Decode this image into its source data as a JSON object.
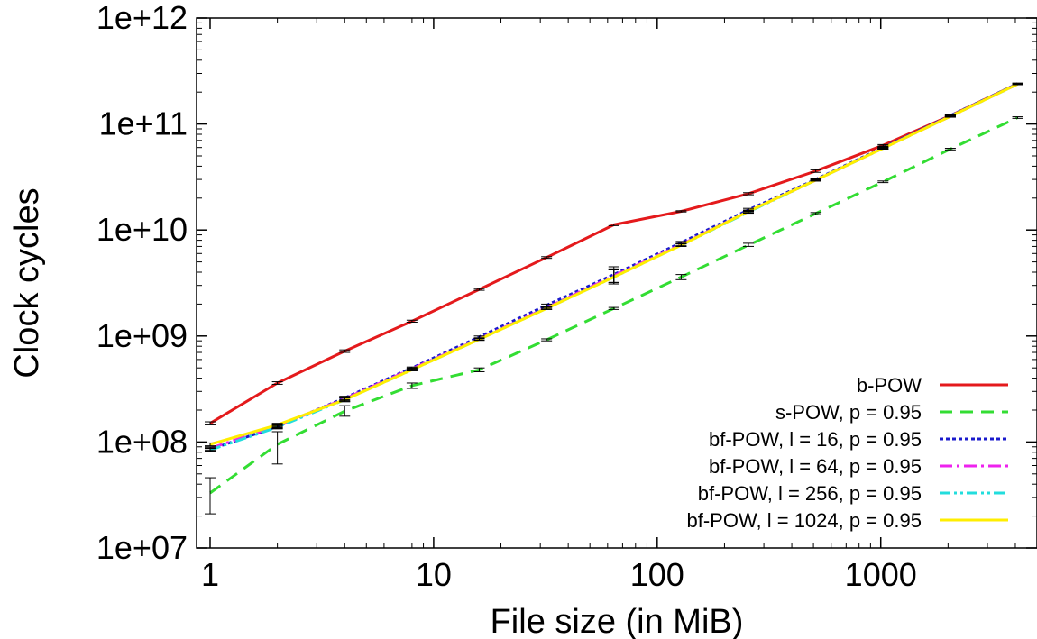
{
  "chart_data": {
    "type": "line",
    "title": "",
    "xlabel": "File size (in MiB)",
    "ylabel": "Clock cycles",
    "xscale": "log",
    "yscale": "log",
    "xlim": [
      0.87,
      5000
    ],
    "ylim": [
      10000000.0,
      1000000000000.0
    ],
    "xticks": [
      {
        "value": 1,
        "label": "1"
      },
      {
        "value": 10,
        "label": "10"
      },
      {
        "value": 100,
        "label": "100"
      },
      {
        "value": 1000,
        "label": "1000"
      }
    ],
    "yticks": [
      {
        "value": 10000000.0,
        "label": "1e+07"
      },
      {
        "value": 100000000.0,
        "label": "1e+08"
      },
      {
        "value": 1000000000.0,
        "label": "1e+09"
      },
      {
        "value": 10000000000.0,
        "label": "1e+10"
      },
      {
        "value": 100000000000.0,
        "label": "1e+11"
      },
      {
        "value": 1000000000000.0,
        "label": "1e+12"
      }
    ],
    "legend_position": "bottom-right",
    "grid": false,
    "series": [
      {
        "name": "b-POW",
        "color": "#e41a1c",
        "dash": "solid",
        "points": [
          {
            "x": 1,
            "y": 150000000.0,
            "err": [
              145000000.0,
              155000000.0
            ]
          },
          {
            "x": 2,
            "y": 360000000.0,
            "err": [
              350000000.0,
              370000000.0
            ]
          },
          {
            "x": 4,
            "y": 720000000.0,
            "err": [
              700000000.0,
              740000000.0
            ]
          },
          {
            "x": 8,
            "y": 1380000000.0,
            "err": [
              1350000000.0,
              1410000000.0
            ]
          },
          {
            "x": 16,
            "y": 2750000000.0,
            "err": [
              2700000000.0,
              2800000000.0
            ]
          },
          {
            "x": 32,
            "y": 5500000000.0,
            "err": [
              5400000000.0,
              5600000000.0
            ]
          },
          {
            "x": 64,
            "y": 11200000000.0,
            "err": [
              11000000000.0,
              11400000000.0
            ]
          },
          {
            "x": 128,
            "y": 15000000000.0,
            "err": [
              14800000000.0,
              15200000000.0
            ]
          },
          {
            "x": 256,
            "y": 22000000000.0,
            "err": [
              21500000000.0,
              22500000000.0
            ]
          },
          {
            "x": 512,
            "y": 36000000000.0,
            "err": [
              35000000000.0,
              37000000000.0
            ]
          },
          {
            "x": 1024,
            "y": 63000000000.0,
            "err": [
              62000000000.0,
              64000000000.0
            ]
          },
          {
            "x": 2048,
            "y": 120000000000.0,
            "err": [
              118000000000.0,
              122000000000.0
            ]
          },
          {
            "x": 4096,
            "y": 240000000000.0,
            "err": [
              237000000000.0,
              243000000000.0
            ]
          }
        ]
      },
      {
        "name": "s-POW, p = 0.95",
        "color": "#33dd33",
        "dash": "dashed",
        "points": [
          {
            "x": 1,
            "y": 33000000.0,
            "err": [
              21000000.0,
              46000000.0
            ]
          },
          {
            "x": 2,
            "y": 95000000.0,
            "err": [
              62000000.0,
              125000000.0
            ]
          },
          {
            "x": 4,
            "y": 195000000.0,
            "err": [
              175000000.0,
              220000000.0
            ]
          },
          {
            "x": 8,
            "y": 340000000.0,
            "err": [
              320000000.0,
              360000000.0
            ]
          },
          {
            "x": 16,
            "y": 480000000.0,
            "err": [
              460000000.0,
              500000000.0
            ]
          },
          {
            "x": 32,
            "y": 920000000.0,
            "err": [
              900000000.0,
              940000000.0
            ]
          },
          {
            "x": 64,
            "y": 1820000000.0,
            "err": [
              1780000000.0,
              1860000000.0
            ]
          },
          {
            "x": 128,
            "y": 3600000000.0,
            "err": [
              3400000000.0,
              3800000000.0
            ]
          },
          {
            "x": 256,
            "y": 7200000000.0,
            "err": [
              7000000000.0,
              7500000000.0
            ]
          },
          {
            "x": 512,
            "y": 14300000000.0,
            "err": [
              14000000000.0,
              14600000000.0
            ]
          },
          {
            "x": 1024,
            "y": 28500000000.0,
            "err": [
              28000000000.0,
              29000000000.0
            ]
          },
          {
            "x": 2048,
            "y": 58000000000.0,
            "err": [
              57000000000.0,
              59000000000.0
            ]
          },
          {
            "x": 4096,
            "y": 115000000000.0,
            "err": [
              113000000000.0,
              117000000000.0
            ]
          }
        ]
      },
      {
        "name": "bf-POW, l = 16, p = 0.95",
        "color": "#1a1acc",
        "dash": "dotted",
        "points": [
          {
            "x": 1,
            "y": 85000000.0,
            "err": [
              82000000.0,
              88000000.0
            ]
          },
          {
            "x": 2,
            "y": 140000000.0,
            "err": [
              135000000.0,
              145000000.0
            ]
          },
          {
            "x": 4,
            "y": 260000000.0,
            "err": [
              250000000.0,
              270000000.0
            ]
          },
          {
            "x": 8,
            "y": 500000000.0,
            "err": [
              490000000.0,
              510000000.0
            ]
          },
          {
            "x": 16,
            "y": 980000000.0,
            "err": [
              960000000.0,
              1000000000.0
            ]
          },
          {
            "x": 32,
            "y": 1950000000.0,
            "err": [
              1900000000.0,
              2000000000.0
            ]
          },
          {
            "x": 64,
            "y": 3800000000.0,
            "err": [
              3200000000.0,
              4500000000.0
            ]
          },
          {
            "x": 128,
            "y": 7600000000.0,
            "err": [
              7400000000.0,
              7800000000.0
            ]
          },
          {
            "x": 256,
            "y": 15500000000.0,
            "err": [
              15000000000.0,
              16000000000.0
            ]
          },
          {
            "x": 512,
            "y": 30000000000.0,
            "err": [
              29500000000.0,
              30500000000.0
            ]
          },
          {
            "x": 1024,
            "y": 60000000000.0,
            "err": [
              59000000000.0,
              61000000000.0
            ]
          },
          {
            "x": 2048,
            "y": 120000000000.0,
            "err": [
              118000000000.0,
              122000000000.0
            ]
          },
          {
            "x": 4096,
            "y": 240000000000.0,
            "err": [
              237000000000.0,
              243000000000.0
            ]
          }
        ]
      },
      {
        "name": "bf-POW, l = 64, p = 0.95",
        "color": "#ee22ee",
        "dash": "dashdot",
        "points": [
          {
            "x": 1,
            "y": 87000000.0,
            "err": [
              84000000.0,
              90000000.0
            ]
          },
          {
            "x": 2,
            "y": 142000000.0,
            "err": [
              137000000.0,
              147000000.0
            ]
          },
          {
            "x": 4,
            "y": 255000000.0,
            "err": [
              245000000.0,
              265000000.0
            ]
          },
          {
            "x": 8,
            "y": 490000000.0,
            "err": [
              480000000.0,
              500000000.0
            ]
          },
          {
            "x": 16,
            "y": 940000000.0,
            "err": [
              920000000.0,
              960000000.0
            ]
          },
          {
            "x": 32,
            "y": 1850000000.0,
            "err": [
              1800000000.0,
              1900000000.0
            ]
          },
          {
            "x": 64,
            "y": 3700000000.0,
            "err": [
              3200000000.0,
              4300000000.0
            ]
          },
          {
            "x": 128,
            "y": 7300000000.0,
            "err": [
              7100000000.0,
              7500000000.0
            ]
          },
          {
            "x": 256,
            "y": 15000000000.0,
            "err": [
              14600000000.0,
              15400000000.0
            ]
          },
          {
            "x": 512,
            "y": 29500000000.0,
            "err": [
              29000000000.0,
              30000000000.0
            ]
          },
          {
            "x": 1024,
            "y": 59000000000.0,
            "err": [
              58000000000.0,
              60000000000.0
            ]
          },
          {
            "x": 2048,
            "y": 118000000000.0,
            "err": [
              116000000000.0,
              120000000000.0
            ]
          },
          {
            "x": 4096,
            "y": 238000000000.0,
            "err": [
              235000000000.0,
              241000000000.0
            ]
          }
        ]
      },
      {
        "name": "bf-POW, l = 256, p = 0.95",
        "color": "#22dddd",
        "dash": "dashdotdot",
        "points": [
          {
            "x": 1,
            "y": 84000000.0,
            "err": [
              81000000.0,
              87000000.0
            ]
          },
          {
            "x": 2,
            "y": 138000000.0,
            "err": [
              133000000.0,
              143000000.0
            ]
          },
          {
            "x": 4,
            "y": 250000000.0,
            "err": [
              240000000.0,
              260000000.0
            ]
          },
          {
            "x": 8,
            "y": 480000000.0,
            "err": [
              470000000.0,
              490000000.0
            ]
          },
          {
            "x": 16,
            "y": 930000000.0,
            "err": [
              910000000.0,
              950000000.0
            ]
          },
          {
            "x": 32,
            "y": 1820000000.0,
            "err": [
              1780000000.0,
              1860000000.0
            ]
          },
          {
            "x": 64,
            "y": 3600000000.0,
            "err": [
              3100000000.0,
              4200000000.0
            ]
          },
          {
            "x": 128,
            "y": 7200000000.0,
            "err": [
              7000000000.0,
              7400000000.0
            ]
          },
          {
            "x": 256,
            "y": 14800000000.0,
            "err": [
              14400000000.0,
              15200000000.0
            ]
          },
          {
            "x": 512,
            "y": 29500000000.0,
            "err": [
              29000000000.0,
              30000000000.0
            ]
          },
          {
            "x": 1024,
            "y": 59000000000.0,
            "err": [
              58000000000.0,
              60000000000.0
            ]
          },
          {
            "x": 2048,
            "y": 118000000000.0,
            "err": [
              116000000000.0,
              120000000000.0
            ]
          },
          {
            "x": 4096,
            "y": 238000000000.0,
            "err": [
              235000000000.0,
              241000000000.0
            ]
          }
        ]
      },
      {
        "name": "bf-POW, l = 1024, p = 0.95",
        "color": "#ffee00",
        "dash": "solid",
        "points": [
          {
            "x": 1,
            "y": 95000000.0,
            "err": [
              92000000.0,
              98000000.0
            ]
          },
          {
            "x": 2,
            "y": 145000000.0,
            "err": [
              140000000.0,
              150000000.0
            ]
          },
          {
            "x": 4,
            "y": 250000000.0,
            "err": [
              240000000.0,
              260000000.0
            ]
          },
          {
            "x": 8,
            "y": 480000000.0,
            "err": [
              470000000.0,
              490000000.0
            ]
          },
          {
            "x": 16,
            "y": 930000000.0,
            "err": [
              910000000.0,
              950000000.0
            ]
          },
          {
            "x": 32,
            "y": 1820000000.0,
            "err": [
              1780000000.0,
              1860000000.0
            ]
          },
          {
            "x": 64,
            "y": 3600000000.0,
            "err": [
              3100000000.0,
              4200000000.0
            ]
          },
          {
            "x": 128,
            "y": 7200000000.0,
            "err": [
              7000000000.0,
              7400000000.0
            ]
          },
          {
            "x": 256,
            "y": 15000000000.0,
            "err": [
              14600000000.0,
              15400000000.0
            ]
          },
          {
            "x": 512,
            "y": 29500000000.0,
            "err": [
              29000000000.0,
              30000000000.0
            ]
          },
          {
            "x": 1024,
            "y": 59000000000.0,
            "err": [
              58000000000.0,
              60000000000.0
            ]
          },
          {
            "x": 2048,
            "y": 118000000000.0,
            "err": [
              116000000000.0,
              120000000000.0
            ]
          },
          {
            "x": 4096,
            "y": 238000000000.0,
            "err": [
              235000000000.0,
              241000000000.0
            ]
          }
        ]
      }
    ]
  }
}
